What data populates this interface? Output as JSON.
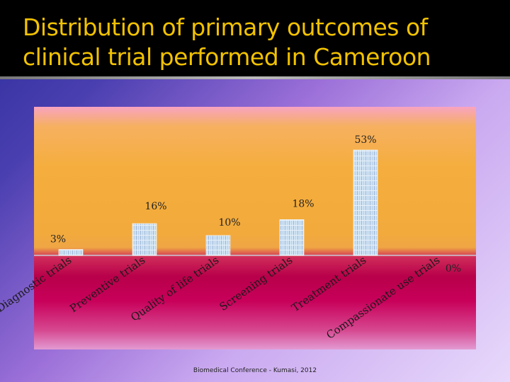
{
  "slide": {
    "title_line1": "Distribution of primary outcomes of",
    "title_line2": "clinical trial performed in Cameroon",
    "footer": "Biomedical Conference - Kumasi, 2012"
  },
  "colors": {
    "title": "#f2c200",
    "bar_fill": "#cfe3f3",
    "bar_stripe": "#9fb8da"
  },
  "chart_data": {
    "type": "bar",
    "title": "Distribution of primary outcomes of clinical trial performed in Cameroon",
    "categories": [
      "Diagnostic trials",
      "Preventive trials",
      "Quality of life trials",
      "Screening trials",
      "Treatment trials",
      "Compassionate use trials"
    ],
    "values": [
      3,
      16,
      10,
      18,
      53,
      0
    ],
    "data_labels": [
      "3%",
      "16%",
      "10%",
      "18%",
      "53%",
      "0%"
    ],
    "ylim": [
      0,
      53
    ],
    "grid": false,
    "legend": "none"
  }
}
